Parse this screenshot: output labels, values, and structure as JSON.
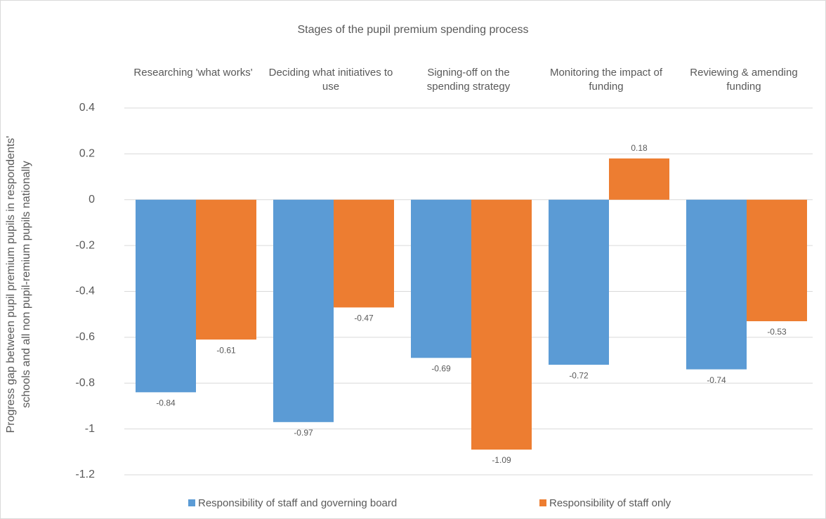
{
  "chart_data": {
    "type": "bar",
    "title": "Stages of the pupil premium spending process",
    "y_label": [
      "Progress gap between pupil premium pupils in respondents'",
      "schools and all non pupil-remium pupils nationally"
    ],
    "categories": [
      "Researching 'what works'",
      "Deciding what initiatives to use",
      "Signing-off on the spending strategy",
      "Monitoring the impact of funding",
      "Reviewing & amending funding"
    ],
    "series": [
      {
        "name": "Responsibility of staff and governing board",
        "color": "#5b9bd5",
        "values": [
          -0.84,
          -0.97,
          -0.69,
          -0.72,
          -0.74
        ]
      },
      {
        "name": "Responsibility of staff only",
        "color": "#ed7d31",
        "values": [
          -0.61,
          -0.47,
          -1.09,
          0.18,
          -0.53
        ]
      }
    ],
    "ylim": [
      -1.2,
      0.4
    ],
    "yticks": [
      0.4,
      0.2,
      0,
      -0.2,
      -0.4,
      -0.6,
      -0.8,
      -1,
      -1.2
    ],
    "grid": true,
    "legend": "bottom"
  }
}
